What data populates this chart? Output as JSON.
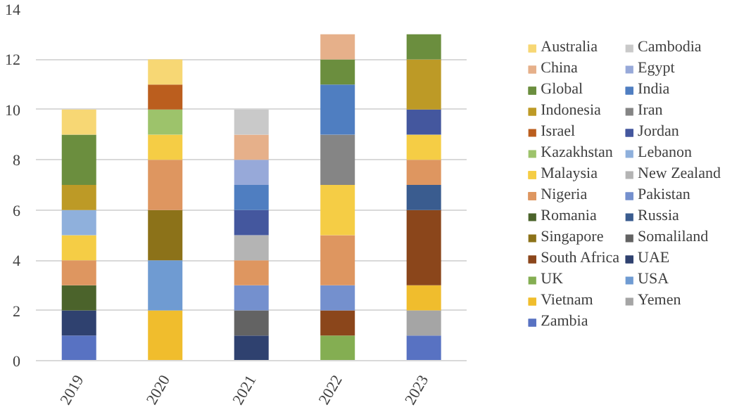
{
  "chart_data": {
    "type": "bar",
    "stacked": true,
    "categories": [
      "2019",
      "2020",
      "2021",
      "2022",
      "2023"
    ],
    "ylim": [
      0,
      14
    ],
    "yticks": [
      0,
      2,
      4,
      6,
      8,
      10,
      12,
      14
    ],
    "grid": "y",
    "legend": "right",
    "series": [
      {
        "name": "Zambia",
        "color": "#5872c2",
        "values": [
          1,
          null,
          null,
          null,
          1
        ]
      },
      {
        "name": "Yemen",
        "color": "#a5a5a5",
        "values": [
          null,
          null,
          null,
          null,
          1
        ]
      },
      {
        "name": "Vietnam",
        "color": "#f0bd2d",
        "values": [
          null,
          2,
          null,
          null,
          1
        ]
      },
      {
        "name": "USA",
        "color": "#6f9bd2",
        "values": [
          null,
          2,
          null,
          null,
          null
        ]
      },
      {
        "name": "UK",
        "color": "#84ae52",
        "values": [
          null,
          null,
          null,
          1,
          null
        ]
      },
      {
        "name": "UAE",
        "color": "#2f416f",
        "values": [
          1,
          null,
          1,
          null,
          null
        ]
      },
      {
        "name": "South Africa",
        "color": "#8b461b",
        "values": [
          null,
          null,
          null,
          1,
          3
        ]
      },
      {
        "name": "Somaliland",
        "color": "#636363",
        "values": [
          null,
          null,
          1,
          null,
          null
        ]
      },
      {
        "name": "Singapore",
        "color": "#8c7219",
        "values": [
          null,
          2,
          null,
          null,
          null
        ]
      },
      {
        "name": "Russia",
        "color": "#3a5c8f",
        "values": [
          null,
          null,
          null,
          null,
          1
        ]
      },
      {
        "name": "Romania",
        "color": "#4b632b",
        "values": [
          1,
          null,
          null,
          null,
          null
        ]
      },
      {
        "name": "Pakistan",
        "color": "#7490ce",
        "values": [
          null,
          null,
          1,
          1,
          null
        ]
      },
      {
        "name": "Nigeria",
        "color": "#de9660",
        "values": [
          1,
          2,
          1,
          2,
          1
        ]
      },
      {
        "name": "New Zealand",
        "color": "#b4b4b4",
        "values": [
          null,
          null,
          1,
          null,
          null
        ]
      },
      {
        "name": "Malaysia",
        "color": "#f5cd45",
        "values": [
          1,
          1,
          null,
          2,
          1
        ]
      },
      {
        "name": "Lebanon",
        "color": "#8fb0dc",
        "values": [
          1,
          null,
          null,
          null,
          null
        ]
      },
      {
        "name": "Kazakhstan",
        "color": "#9dc36b",
        "values": [
          null,
          1,
          null,
          null,
          null
        ]
      },
      {
        "name": "Jordan",
        "color": "#44579e",
        "values": [
          null,
          null,
          1,
          null,
          1
        ]
      },
      {
        "name": "Israel",
        "color": "#bb5e1e",
        "values": [
          null,
          1,
          null,
          null,
          null
        ]
      },
      {
        "name": "Iran",
        "color": "#858585",
        "values": [
          null,
          null,
          null,
          2,
          null
        ]
      },
      {
        "name": "Indonesia",
        "color": "#bd9a26",
        "values": [
          1,
          null,
          null,
          null,
          2
        ]
      },
      {
        "name": "India",
        "color": "#4f7ec1",
        "values": [
          null,
          null,
          1,
          2,
          null
        ]
      },
      {
        "name": "Global",
        "color": "#6b8e3e",
        "values": [
          2,
          null,
          null,
          1,
          1
        ]
      },
      {
        "name": "Egypt",
        "color": "#97a9d9",
        "values": [
          null,
          null,
          1,
          null,
          null
        ]
      },
      {
        "name": "China",
        "color": "#e6b08a",
        "values": [
          null,
          null,
          1,
          1,
          null
        ]
      },
      {
        "name": "Cambodia",
        "color": "#c9c9c9",
        "values": [
          null,
          null,
          1,
          null,
          null
        ]
      },
      {
        "name": "Australia",
        "color": "#f7d774",
        "values": [
          1,
          1,
          null,
          null,
          null
        ]
      }
    ]
  }
}
